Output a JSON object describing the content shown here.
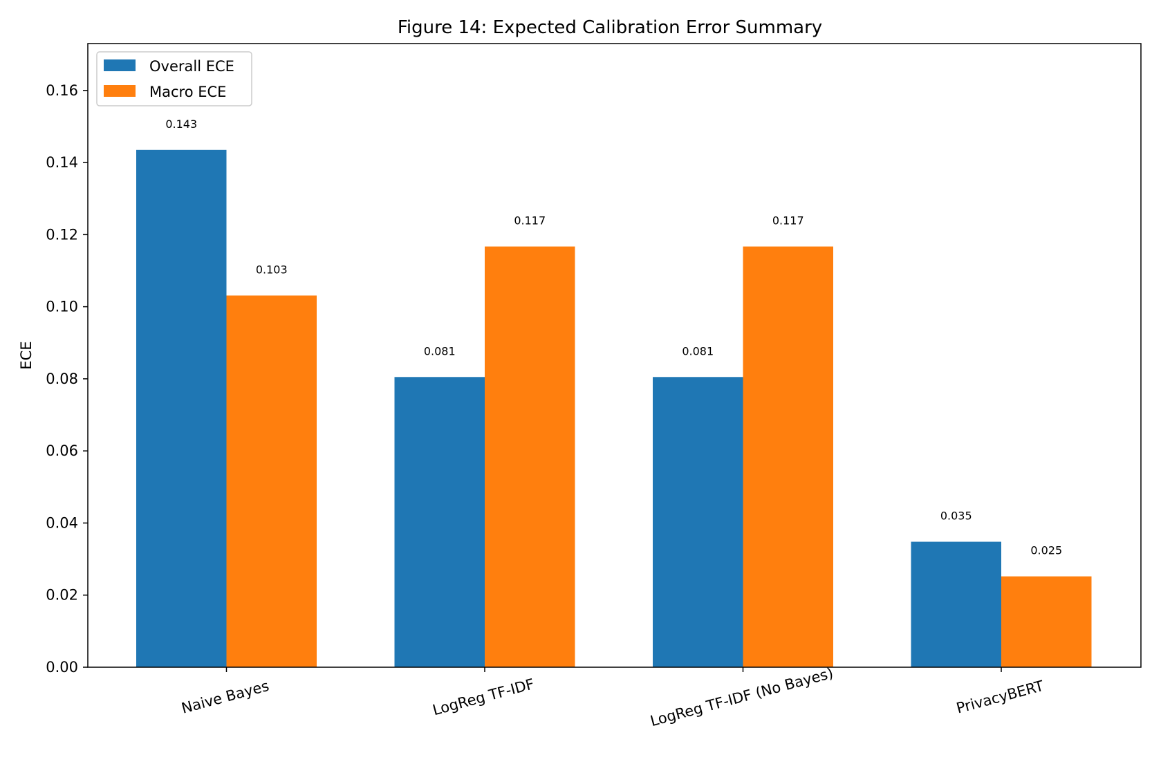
{
  "chart_data": {
    "type": "bar",
    "title": "Figure 14: Expected Calibration Error Summary",
    "xlabel": "",
    "ylabel": "ECE",
    "ylim": [
      0,
      0.173
    ],
    "yticks": [
      0.0,
      0.02,
      0.04,
      0.06,
      0.08,
      0.1,
      0.12,
      0.14,
      0.16
    ],
    "ytick_labels": [
      "0.00",
      "0.02",
      "0.04",
      "0.06",
      "0.08",
      "0.10",
      "0.12",
      "0.14",
      "0.16"
    ],
    "categories": [
      "Naive Bayes",
      "LogReg TF-IDF",
      "LogReg TF-IDF (No Bayes)",
      "PrivacyBERT"
    ],
    "series": [
      {
        "name": "Overall ECE",
        "color": "#1f77b4",
        "values": [
          0.1435,
          0.0805,
          0.0805,
          0.0348
        ],
        "labels": [
          "0.143",
          "0.081",
          "0.081",
          "0.035"
        ]
      },
      {
        "name": "Macro ECE",
        "color": "#ff7f0e",
        "values": [
          0.1031,
          0.1167,
          0.1167,
          0.0252
        ],
        "labels": [
          "0.103",
          "0.117",
          "0.117",
          "0.025"
        ]
      }
    ],
    "legend_position": "top-left",
    "grid": false
  }
}
